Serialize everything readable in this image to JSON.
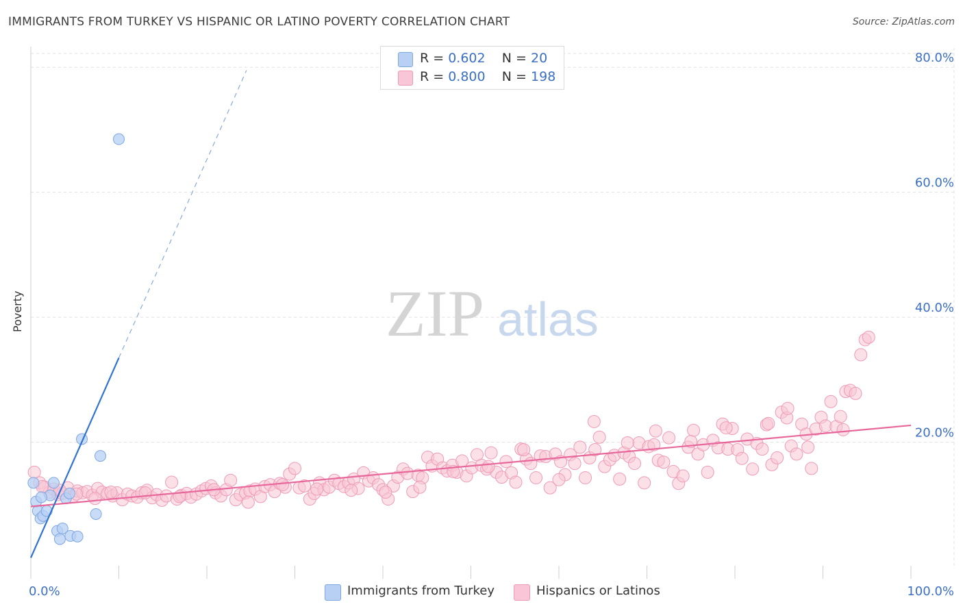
{
  "title": "IMMIGRANTS FROM TURKEY VS HISPANIC OR LATINO POVERTY CORRELATION CHART",
  "source": "Source: ZipAtlas.com",
  "watermark": {
    "zip": "ZIP",
    "atlas": "atlas"
  },
  "legend_top": {
    "rows": [
      {
        "r_label": "R =",
        "r_value": "0.602",
        "n_label": "N =",
        "n_value": "20"
      },
      {
        "r_label": "R =",
        "r_value": "0.800",
        "n_label": "N =",
        "n_value": "198"
      }
    ]
  },
  "legend_bottom": [
    {
      "label": "Immigrants from Turkey"
    },
    {
      "label": "Hispanics or Latinos"
    }
  ],
  "colors": {
    "blue_fill": "#b7d0f4",
    "blue_stroke": "#7ea6e0",
    "blue_line": "#2f72d0",
    "pink_fill": "#f8c6d6",
    "pink_stroke": "#ef9ab5",
    "pink_line": "#e8679a",
    "tick_text": "#3b6fc4",
    "grid": "#e1e1e1"
  },
  "chart_data": {
    "type": "scatter",
    "title": "IMMIGRANTS FROM TURKEY VS HISPANIC OR LATINO POVERTY CORRELATION CHART",
    "xlabel": "",
    "ylabel": "Poverty",
    "xlim": [
      0,
      100
    ],
    "ylim": [
      0,
      82
    ],
    "x_tick_labels": [
      "0.0%",
      "100.0%"
    ],
    "y_ticks": [
      20,
      40,
      60,
      80
    ],
    "y_tick_labels": [
      "20.0%",
      "40.0%",
      "60.0%",
      "80.0%"
    ],
    "grid": true,
    "legend_position": "bottom",
    "series": [
      {
        "name": "Immigrants from Turkey",
        "r": 0.602,
        "n": 20,
        "trend": {
          "x": [
            0,
            10
          ],
          "y": [
            1.5,
            33.5
          ],
          "dashed_to": [
            24.5,
            79.5
          ]
        },
        "points": [
          [
            0.3,
            13.5
          ],
          [
            0.6,
            10.5
          ],
          [
            0.8,
            9.0
          ],
          [
            1.1,
            7.8
          ],
          [
            1.4,
            8.2
          ],
          [
            1.8,
            9.0
          ],
          [
            2.2,
            11.5
          ],
          [
            2.6,
            13.5
          ],
          [
            3.0,
            5.8
          ],
          [
            3.3,
            4.5
          ],
          [
            3.6,
            6.2
          ],
          [
            4.0,
            11.0
          ],
          [
            4.4,
            11.8
          ],
          [
            4.5,
            5.0
          ],
          [
            5.3,
            4.9
          ],
          [
            5.8,
            20.5
          ],
          [
            7.4,
            8.5
          ],
          [
            7.9,
            17.8
          ],
          [
            10.0,
            68.5
          ],
          [
            1.2,
            11.2
          ]
        ]
      },
      {
        "name": "Hispanics or Latinos",
        "r": 0.8,
        "n": 198,
        "trend": {
          "x": [
            0,
            100
          ],
          "y": [
            9.7,
            22.7
          ]
        },
        "points": [
          [
            0.4,
            15.2
          ],
          [
            1.0,
            13.5
          ],
          [
            1.6,
            12.8
          ],
          [
            2.1,
            12.0
          ],
          [
            2.6,
            12.5
          ],
          [
            3.1,
            11.6
          ],
          [
            3.6,
            11.8
          ],
          [
            4.2,
            12.7
          ],
          [
            4.8,
            11.3
          ],
          [
            5.3,
            12.2
          ],
          [
            5.9,
            11.9
          ],
          [
            6.4,
            12.1
          ],
          [
            7.0,
            11.5
          ],
          [
            7.6,
            12.6
          ],
          [
            8.1,
            12.0
          ],
          [
            8.7,
            11.8
          ],
          [
            9.3,
            11.4
          ],
          [
            9.8,
            11.9
          ],
          [
            10.4,
            10.8
          ],
          [
            11.0,
            11.7
          ],
          [
            11.5,
            11.4
          ],
          [
            12.1,
            11.2
          ],
          [
            12.6,
            11.9
          ],
          [
            13.2,
            12.3
          ],
          [
            13.8,
            11.1
          ],
          [
            14.3,
            11.6
          ],
          [
            14.9,
            10.7
          ],
          [
            15.4,
            11.4
          ],
          [
            16.0,
            13.6
          ],
          [
            16.6,
            10.9
          ],
          [
            17.1,
            11.5
          ],
          [
            17.7,
            11.8
          ],
          [
            18.2,
            11.2
          ],
          [
            18.8,
            11.7
          ],
          [
            19.4,
            12.2
          ],
          [
            19.9,
            12.6
          ],
          [
            20.5,
            13.0
          ],
          [
            21.0,
            11.9
          ],
          [
            21.6,
            11.4
          ],
          [
            22.2,
            12.4
          ],
          [
            22.7,
            13.9
          ],
          [
            23.3,
            10.8
          ],
          [
            23.8,
            11.6
          ],
          [
            24.4,
            11.9
          ],
          [
            24.9,
            12.2
          ],
          [
            25.5,
            12.5
          ],
          [
            26.1,
            11.3
          ],
          [
            26.6,
            12.9
          ],
          [
            27.2,
            13.2
          ],
          [
            27.7,
            12.1
          ],
          [
            28.3,
            13.4
          ],
          [
            28.9,
            12.8
          ],
          [
            29.4,
            14.9
          ],
          [
            30.0,
            15.8
          ],
          [
            30.5,
            12.7
          ],
          [
            31.1,
            13.0
          ],
          [
            31.7,
            10.9
          ],
          [
            32.2,
            11.8
          ],
          [
            32.8,
            13.5
          ],
          [
            33.3,
            12.4
          ],
          [
            33.9,
            12.8
          ],
          [
            34.5,
            13.9
          ],
          [
            35.0,
            13.4
          ],
          [
            35.6,
            12.9
          ],
          [
            36.1,
            13.5
          ],
          [
            36.7,
            14.1
          ],
          [
            37.2,
            12.6
          ],
          [
            37.8,
            15.1
          ],
          [
            38.4,
            13.8
          ],
          [
            38.9,
            14.3
          ],
          [
            39.5,
            13.2
          ],
          [
            40.0,
            12.4
          ],
          [
            40.6,
            10.9
          ],
          [
            41.2,
            13.0
          ],
          [
            41.7,
            14.4
          ],
          [
            42.3,
            15.7
          ],
          [
            42.8,
            15.0
          ],
          [
            43.4,
            12.1
          ],
          [
            44.0,
            14.7
          ],
          [
            44.5,
            14.3
          ],
          [
            45.1,
            17.6
          ],
          [
            45.6,
            16.2
          ],
          [
            46.2,
            17.3
          ],
          [
            46.8,
            15.9
          ],
          [
            47.3,
            15.4
          ],
          [
            47.9,
            16.3
          ],
          [
            48.4,
            15.2
          ],
          [
            49.0,
            17.0
          ],
          [
            49.5,
            14.6
          ],
          [
            50.1,
            15.9
          ],
          [
            50.7,
            18.0
          ],
          [
            51.2,
            16.3
          ],
          [
            51.8,
            15.7
          ],
          [
            52.3,
            18.3
          ],
          [
            52.9,
            15.2
          ],
          [
            53.5,
            14.4
          ],
          [
            54.0,
            16.9
          ],
          [
            54.6,
            15.1
          ],
          [
            55.1,
            13.6
          ],
          [
            55.7,
            18.9
          ],
          [
            56.3,
            17.3
          ],
          [
            56.8,
            16.6
          ],
          [
            57.4,
            14.3
          ],
          [
            57.9,
            17.8
          ],
          [
            58.5,
            17.7
          ],
          [
            59.0,
            12.7
          ],
          [
            59.6,
            18.1
          ],
          [
            60.2,
            16.9
          ],
          [
            60.7,
            14.8
          ],
          [
            61.3,
            18.0
          ],
          [
            61.8,
            16.6
          ],
          [
            62.4,
            19.2
          ],
          [
            63.0,
            14.3
          ],
          [
            63.5,
            17.5
          ],
          [
            64.1,
            18.8
          ],
          [
            64.6,
            20.8
          ],
          [
            65.2,
            16.1
          ],
          [
            65.8,
            17.2
          ],
          [
            66.3,
            17.9
          ],
          [
            66.9,
            14.1
          ],
          [
            67.4,
            18.3
          ],
          [
            68.0,
            17.7
          ],
          [
            68.6,
            16.6
          ],
          [
            69.1,
            19.9
          ],
          [
            69.7,
            13.5
          ],
          [
            70.2,
            19.3
          ],
          [
            70.8,
            19.6
          ],
          [
            71.3,
            17.1
          ],
          [
            71.9,
            16.8
          ],
          [
            72.5,
            20.7
          ],
          [
            73.0,
            15.3
          ],
          [
            73.6,
            13.4
          ],
          [
            74.1,
            14.6
          ],
          [
            74.7,
            19.2
          ],
          [
            75.3,
            21.9
          ],
          [
            75.8,
            18.1
          ],
          [
            76.4,
            19.6
          ],
          [
            76.9,
            15.2
          ],
          [
            77.5,
            20.3
          ],
          [
            78.1,
            19.1
          ],
          [
            78.6,
            22.9
          ],
          [
            79.2,
            18.9
          ],
          [
            79.7,
            22.2
          ],
          [
            80.3,
            18.8
          ],
          [
            80.8,
            17.4
          ],
          [
            81.4,
            20.5
          ],
          [
            82.0,
            15.7
          ],
          [
            82.5,
            19.8
          ],
          [
            83.1,
            18.9
          ],
          [
            83.6,
            22.8
          ],
          [
            84.2,
            16.4
          ],
          [
            84.8,
            17.5
          ],
          [
            85.3,
            24.8
          ],
          [
            85.9,
            23.9
          ],
          [
            86.4,
            19.4
          ],
          [
            87.0,
            18.1
          ],
          [
            87.6,
            22.9
          ],
          [
            88.1,
            21.3
          ],
          [
            88.7,
            15.8
          ],
          [
            89.2,
            22.1
          ],
          [
            89.8,
            24.0
          ],
          [
            90.3,
            22.6
          ],
          [
            90.9,
            26.5
          ],
          [
            91.5,
            22.5
          ],
          [
            92.0,
            24.1
          ],
          [
            92.6,
            28.1
          ],
          [
            93.1,
            28.3
          ],
          [
            93.7,
            27.8
          ],
          [
            94.3,
            34.0
          ],
          [
            94.8,
            36.4
          ],
          [
            95.2,
            36.8
          ],
          [
            86.0,
            25.4
          ],
          [
            92.3,
            22.0
          ],
          [
            88.3,
            19.2
          ],
          [
            83.8,
            23.0
          ],
          [
            79.0,
            22.3
          ],
          [
            75.0,
            20.1
          ],
          [
            71.0,
            21.8
          ],
          [
            67.8,
            19.9
          ],
          [
            64.0,
            23.3
          ],
          [
            60.0,
            14.0
          ],
          [
            56.0,
            18.8
          ],
          [
            52.0,
            16.1
          ],
          [
            48.0,
            15.3
          ],
          [
            44.2,
            12.8
          ],
          [
            40.3,
            12.0
          ],
          [
            36.4,
            12.3
          ],
          [
            32.5,
            12.5
          ],
          [
            28.6,
            13.2
          ],
          [
            24.7,
            10.4
          ],
          [
            20.8,
            12.4
          ],
          [
            16.9,
            11.3
          ],
          [
            13.0,
            11.9
          ],
          [
            9.1,
            12.0
          ],
          [
            5.2,
            11.7
          ],
          [
            1.3,
            12.9
          ],
          [
            3.3,
            12.3
          ],
          [
            7.3,
            11.0
          ]
        ]
      }
    ]
  }
}
